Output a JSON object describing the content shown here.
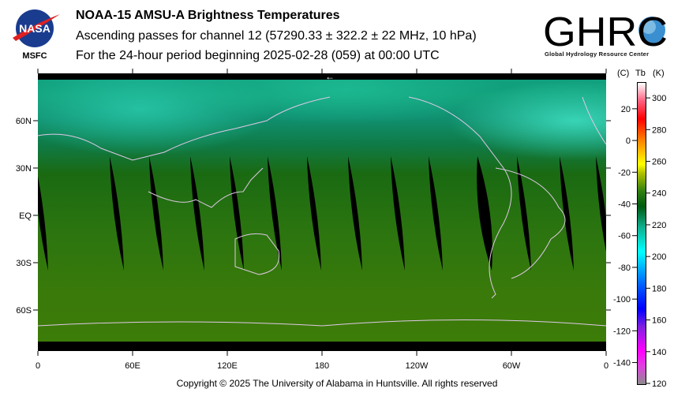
{
  "header": {
    "title": "NOAA-15 AMSU-A Brightness Temperatures",
    "subtitle": "Ascending passes for channel 12 (57290.33 ± 322.2 ± 22 MHz, 10 hPa)",
    "period": "For the 24-hour period beginning 2025-02-28 (059) at 00:00 UTC",
    "left_logo_text": "NASA",
    "left_logo_caption": "MSFC",
    "right_logo_text": "GHRC",
    "right_logo_caption": "Global Hydrology Resource Center"
  },
  "chart_data": {
    "type": "heatmap",
    "title": "NOAA-15 AMSU-A Brightness Temperatures",
    "x_ticks": [
      "0",
      "60E",
      "120E",
      "180",
      "120W",
      "60W",
      "0"
    ],
    "x_tick_values": [
      0,
      60,
      120,
      180,
      240,
      300,
      360
    ],
    "y_ticks": [
      "60N",
      "30N",
      "EQ",
      "30S",
      "60S"
    ],
    "y_tick_values": [
      60,
      30,
      0,
      -30,
      -60
    ],
    "xlim": [
      0,
      360
    ],
    "ylim": [
      -90,
      90
    ],
    "direction_marker": "←",
    "colorbar": {
      "header_c": "(C)",
      "header_tb": "Tb",
      "header_k": "(K)",
      "kelvin_range": [
        120,
        310
      ],
      "kelvin_ticks": [
        "300",
        "280",
        "260",
        "240",
        "220",
        "200",
        "180",
        "160",
        "140",
        "120"
      ],
      "kelvin_values": [
        300,
        280,
        260,
        240,
        220,
        200,
        180,
        160,
        140,
        120
      ],
      "celsius_ticks": [
        "20",
        "0",
        "-20",
        "-40",
        "-60",
        "-80",
        "-100",
        "-120",
        "-140"
      ],
      "celsius_values": [
        20,
        0,
        -20,
        -40,
        -60,
        -80,
        -100,
        -120,
        -140
      ]
    },
    "swath_gap_longitudes_at_equator": [
      2,
      50,
      75,
      101,
      126,
      150,
      175,
      201,
      228,
      252,
      283,
      308,
      335,
      358
    ]
  },
  "footer": {
    "copyright": "Copyright © 2025 The University of Alabama in Huntsville.  All rights reserved"
  }
}
